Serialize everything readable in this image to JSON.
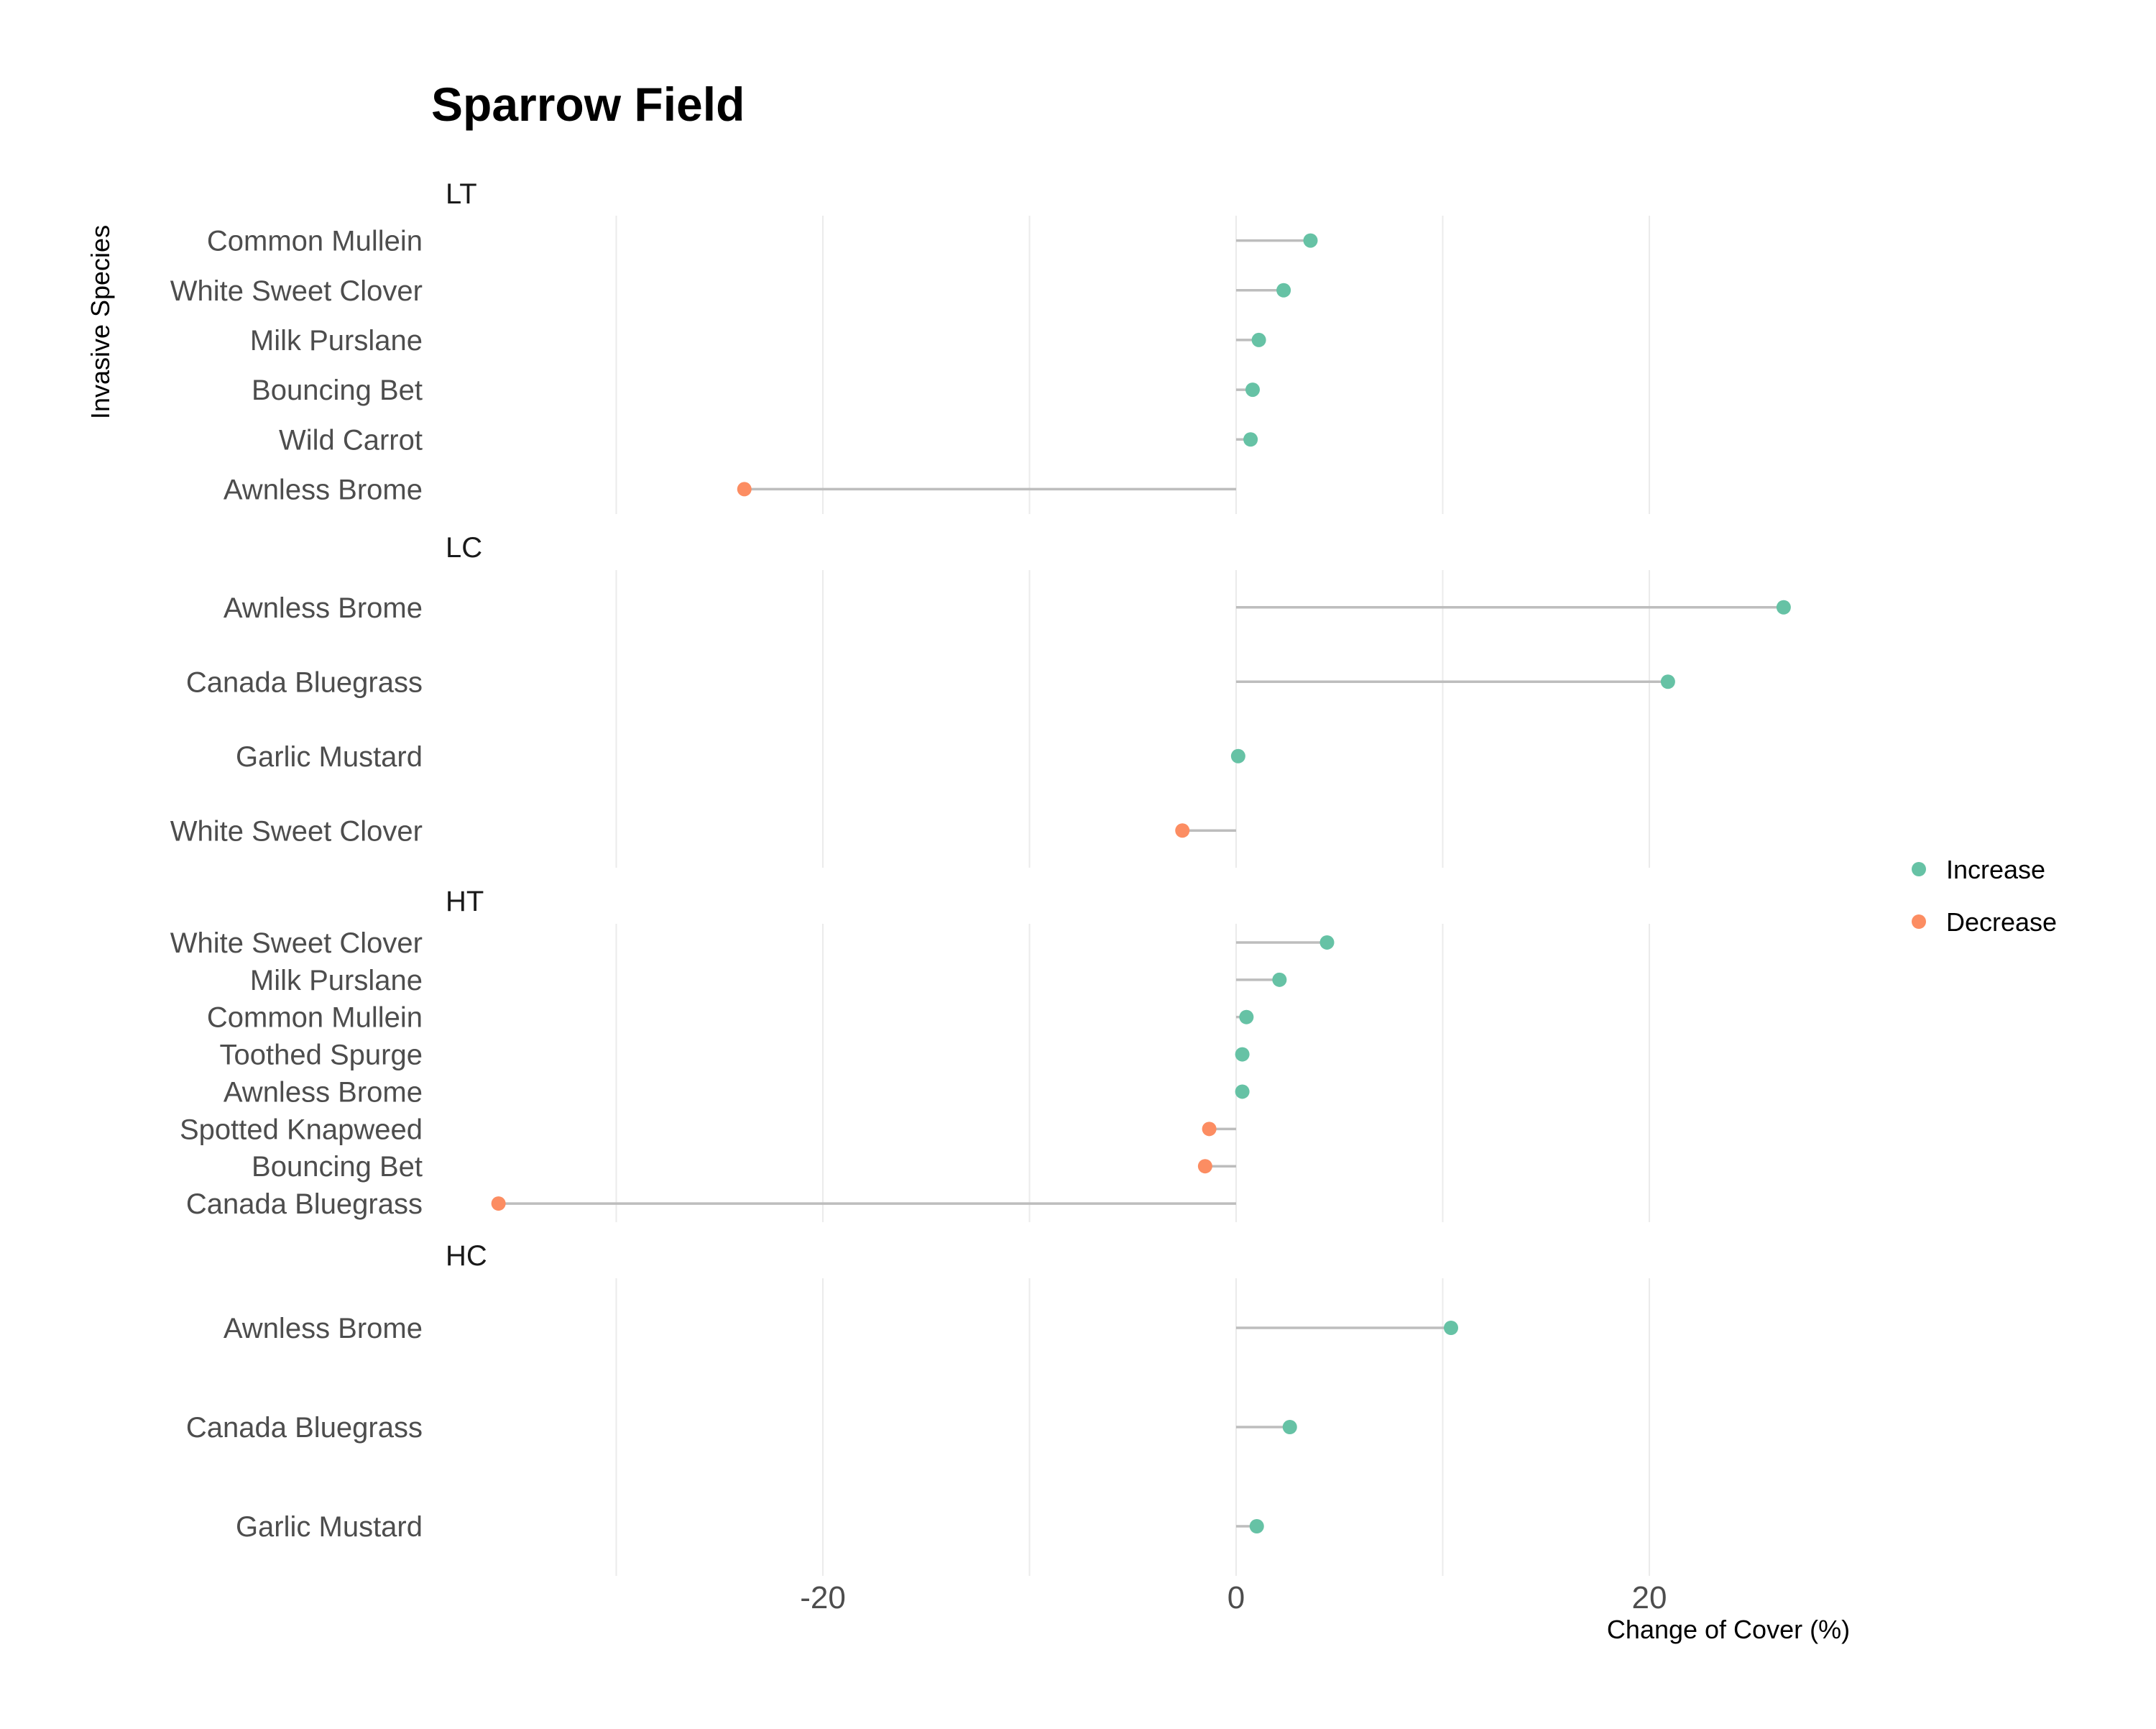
{
  "chart_data": {
    "type": "lollipop",
    "title": "Sparrow Field",
    "xlabel": "Change of Cover (%)",
    "ylabel": "Invasive Species",
    "xlim": [
      -40.5,
      33.5
    ],
    "x_ticks": [
      -20,
      0,
      20
    ],
    "x_gridlines": [
      -30,
      -20,
      -10,
      0,
      10,
      20
    ],
    "legend": {
      "position": "right",
      "items": [
        {
          "label": "Increase",
          "color": "#66c2a5"
        },
        {
          "label": "Decrease",
          "color": "#fc8d62"
        }
      ]
    },
    "colors": {
      "increase": "#66c2a5",
      "decrease": "#fc8d62",
      "stem": "#bdbdbd",
      "grid": "#ebebeb"
    },
    "panels": [
      {
        "label": "LT",
        "rows": [
          {
            "species": "Common Mullein",
            "value": 3.6
          },
          {
            "species": "White Sweet Clover",
            "value": 2.3
          },
          {
            "species": "Milk Purslane",
            "value": 1.1
          },
          {
            "species": "Bouncing Bet",
            "value": 0.8
          },
          {
            "species": "Wild Carrot",
            "value": 0.7
          },
          {
            "species": "Awnless Brome",
            "value": -23.8
          }
        ]
      },
      {
        "label": "LC",
        "rows": [
          {
            "species": "Awnless Brome",
            "value": 26.5
          },
          {
            "species": "Canada Bluegrass",
            "value": 20.9
          },
          {
            "species": "Garlic Mustard",
            "value": 0.1
          },
          {
            "species": "White Sweet Clover",
            "value": -2.6
          }
        ]
      },
      {
        "label": "HT",
        "rows": [
          {
            "species": "White Sweet Clover",
            "value": 4.4
          },
          {
            "species": "Milk Purslane",
            "value": 2.1
          },
          {
            "species": "Common Mullein",
            "value": 0.5
          },
          {
            "species": "Toothed Spurge",
            "value": 0.3
          },
          {
            "species": "Awnless Brome",
            "value": 0.3
          },
          {
            "species": "Spotted Knapweed",
            "value": -1.3
          },
          {
            "species": "Bouncing Bet",
            "value": -1.5
          },
          {
            "species": "Canada Bluegrass",
            "value": -35.7
          }
        ]
      },
      {
        "label": "HC",
        "rows": [
          {
            "species": "Awnless Brome",
            "value": 10.4
          },
          {
            "species": "Canada Bluegrass",
            "value": 2.6
          },
          {
            "species": "Garlic Mustard",
            "value": 1.0
          }
        ]
      }
    ]
  }
}
